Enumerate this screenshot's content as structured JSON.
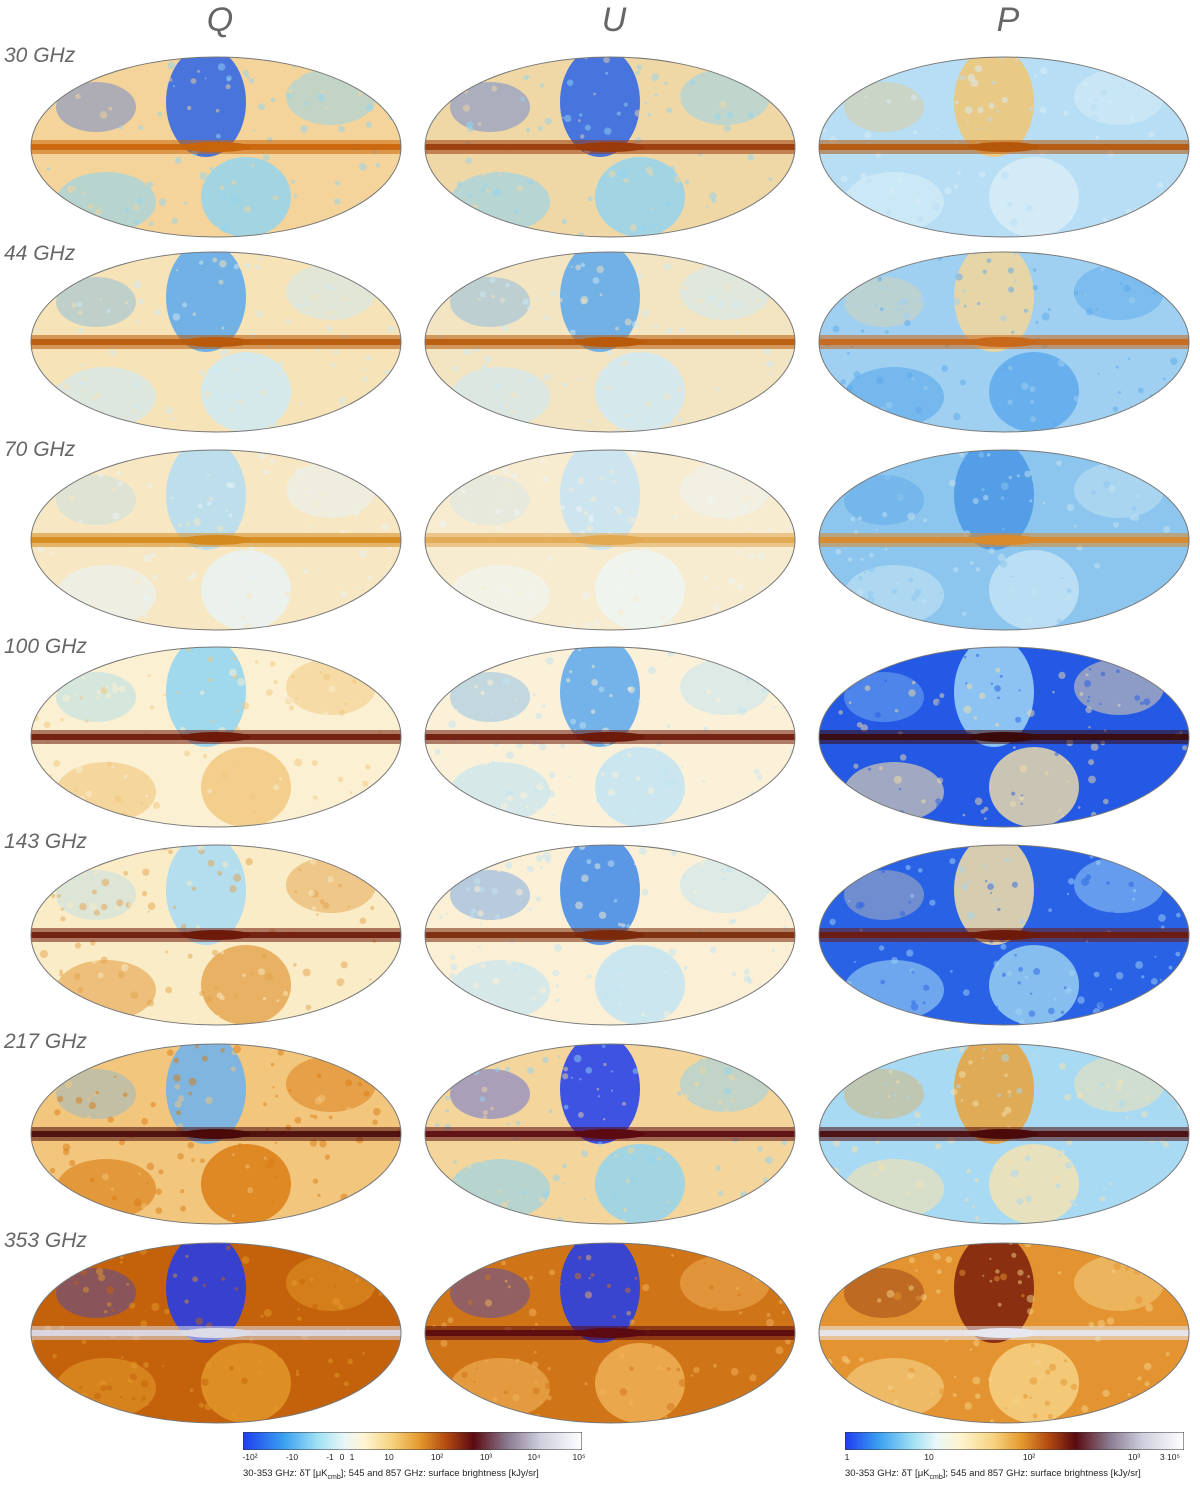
{
  "columns": [
    {
      "label": "Q"
    },
    {
      "label": "U"
    },
    {
      "label": "P"
    }
  ],
  "rows": [
    {
      "label": "30 GHz"
    },
    {
      "label": "44 GHz"
    },
    {
      "label": "70 GHz"
    },
    {
      "label": "100 GHz"
    },
    {
      "label": "143 GHz"
    },
    {
      "label": "217 GHz"
    },
    {
      "label": "353 GHz"
    }
  ],
  "colorbars": {
    "signed": {
      "title": "30-353 GHz: δT [μK",
      "title_sub": "cmb",
      "title_rest": "]; 545 and 857 GHz: surface brightness [kJy/sr]",
      "ticks": [
        "-10²",
        "-10",
        "-1",
        "0",
        "1",
        "10",
        "10²",
        "10³",
        "10⁴",
        "10⁵"
      ]
    },
    "positive": {
      "title": "30-353 GHz: δT [μK",
      "title_sub": "cmb",
      "title_rest": "]; 545 and 857 GHz: surface brightness [kJy/sr]",
      "ticks": [
        "1",
        "10",
        "10²",
        "10³",
        "3 10⁵"
      ]
    }
  },
  "colors": {
    "deep_blue": "#1f3cf0",
    "light_blue": "#8fd3f2",
    "pale": "#fff7dc",
    "yellow": "#f4c86a",
    "orange": "#d9780f",
    "dark_red": "#5a0a10",
    "grey_white": "#e7e7ef"
  }
}
